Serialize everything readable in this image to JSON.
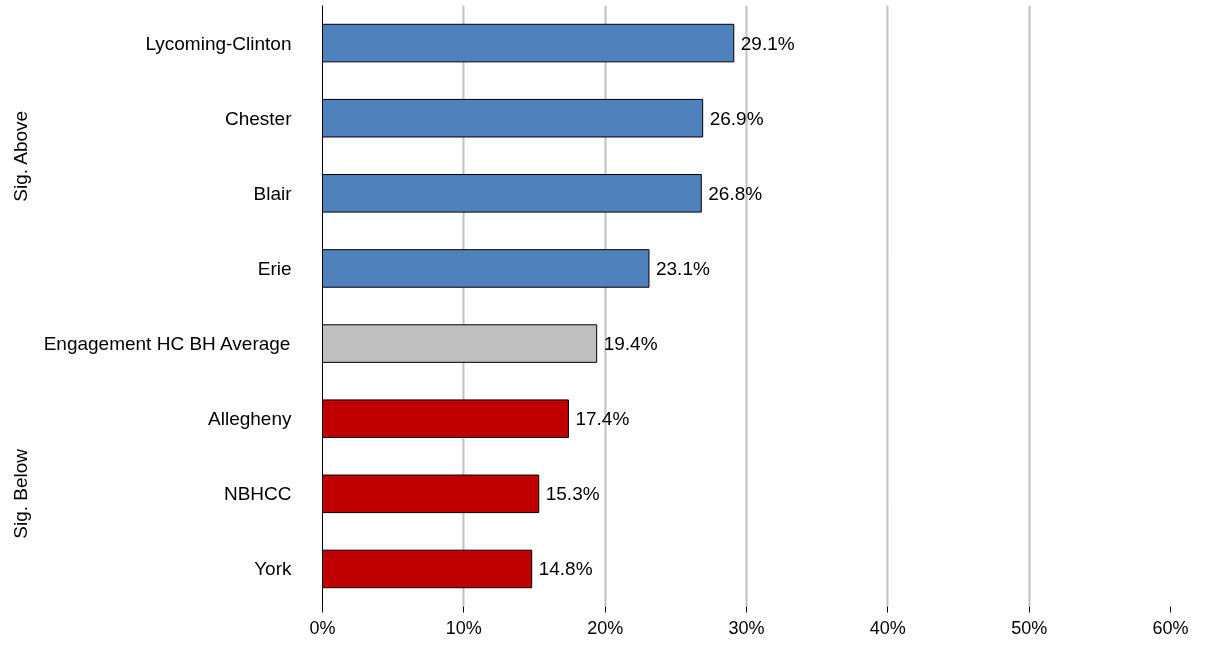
{
  "chart_data": {
    "type": "bar",
    "orientation": "horizontal",
    "categories": [
      "Lycoming-Clinton",
      "Chester",
      "Blair",
      "Erie",
      "Engagement HC BH Average",
      "Allegheny",
      "NBHCC",
      "York"
    ],
    "values": [
      29.1,
      26.9,
      26.8,
      23.1,
      19.4,
      17.4,
      15.3,
      14.8
    ],
    "colors": [
      "#4f81bd",
      "#4f81bd",
      "#4f81bd",
      "#4f81bd",
      "#bfbfbf",
      "#c00000",
      "#c00000",
      "#c00000"
    ],
    "value_labels": [
      "29.1%",
      "26.9%",
      "26.8%",
      "23.1%",
      "19.4%",
      "17.4%",
      "15.3%",
      "14.8%"
    ],
    "xlim": [
      0,
      60
    ],
    "xticks": [
      {
        "value": 0,
        "label": "0%"
      },
      {
        "value": 10,
        "label": "10%"
      },
      {
        "value": 20,
        "label": "20%"
      },
      {
        "value": 30,
        "label": "30%"
      },
      {
        "value": 40,
        "label": "40%"
      },
      {
        "value": 50,
        "label": "50%"
      },
      {
        "value": 60,
        "label": "60%"
      }
    ],
    "grid": "x",
    "annotations": [
      "Sig. Above",
      "Sig. Below"
    ]
  }
}
